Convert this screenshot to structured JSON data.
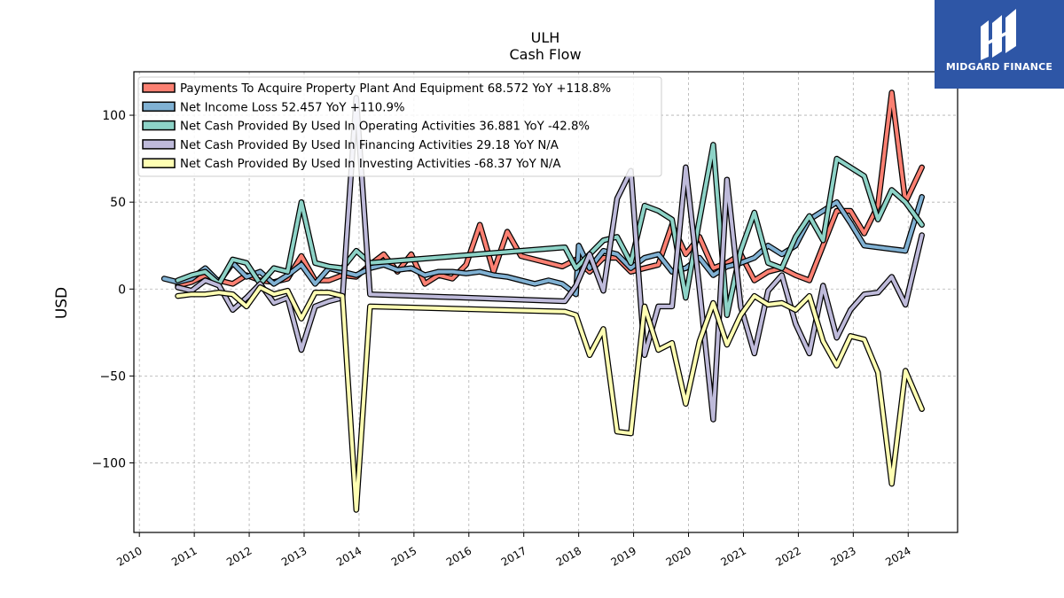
{
  "brand": {
    "name": "MIDGARD FINANCE",
    "bg_color": "#2e56a6"
  },
  "chart_data": {
    "type": "line",
    "title": "ULH",
    "subtitle": "Cash Flow",
    "ylabel": "USD",
    "xlabel": "",
    "xlim": [
      2009.9,
      2024.9
    ],
    "ylim": [
      -140,
      125
    ],
    "x_ticks": [
      "2010",
      "2011",
      "2012",
      "2013",
      "2014",
      "2015",
      "2016",
      "2017",
      "2018",
      "2019",
      "2020",
      "2021",
      "2022",
      "2023",
      "2024"
    ],
    "y_ticks": [
      {
        "value": 100,
        "label": "100"
      },
      {
        "value": 50,
        "label": "50"
      },
      {
        "value": 0,
        "label": "0"
      },
      {
        "value": -50,
        "label": "−50"
      },
      {
        "value": -100,
        "label": "−100"
      }
    ],
    "grid": true,
    "legend_position": "top-left",
    "series": [
      {
        "name": "Payments To Acquire Property Plant And Equipment  68.572 YoY +118.8%",
        "color": "#fb8072",
        "points": [
          [
            2010.7,
            2
          ],
          [
            2010.95,
            4
          ],
          [
            2011.2,
            8
          ],
          [
            2011.45,
            5
          ],
          [
            2011.7,
            3
          ],
          [
            2011.95,
            8
          ],
          [
            2012.2,
            5
          ],
          [
            2012.45,
            4
          ],
          [
            2012.7,
            6
          ],
          [
            2012.95,
            19
          ],
          [
            2013.2,
            5
          ],
          [
            2013.45,
            5
          ],
          [
            2013.7,
            8
          ],
          [
            2013.95,
            7
          ],
          [
            2014.2,
            14
          ],
          [
            2014.45,
            20
          ],
          [
            2014.7,
            10
          ],
          [
            2014.95,
            20
          ],
          [
            2015.2,
            3
          ],
          [
            2015.45,
            8
          ],
          [
            2015.7,
            6
          ],
          [
            2015.95,
            14
          ],
          [
            2016.2,
            37
          ],
          [
            2016.45,
            10
          ],
          [
            2016.7,
            33
          ],
          [
            2016.95,
            19
          ],
          [
            2017.2,
            17
          ],
          [
            2017.45,
            15
          ],
          [
            2017.7,
            13
          ],
          [
            2017.95,
            17
          ],
          [
            2018.2,
            10
          ],
          [
            2018.45,
            18
          ],
          [
            2018.7,
            18
          ],
          [
            2018.95,
            10
          ],
          [
            2019.2,
            12
          ],
          [
            2019.45,
            14
          ],
          [
            2019.7,
            37
          ],
          [
            2019.95,
            20
          ],
          [
            2020.2,
            30
          ],
          [
            2020.45,
            12
          ],
          [
            2020.7,
            15
          ],
          [
            2020.95,
            20
          ],
          [
            2021.2,
            5
          ],
          [
            2021.45,
            10
          ],
          [
            2021.7,
            12
          ],
          [
            2021.95,
            8
          ],
          [
            2022.2,
            5
          ],
          [
            2022.45,
            25
          ],
          [
            2022.7,
            45
          ],
          [
            2022.95,
            45
          ],
          [
            2023.2,
            32
          ],
          [
            2023.45,
            48
          ],
          [
            2023.7,
            113
          ],
          [
            2023.95,
            50
          ],
          [
            2024.25,
            70
          ]
        ]
      },
      {
        "name": "Net Income Loss  52.457 YoY +110.9%",
        "color": "#80b1d3",
        "points": [
          [
            2010.45,
            6
          ],
          [
            2010.7,
            4
          ],
          [
            2010.95,
            6
          ],
          [
            2011.2,
            12
          ],
          [
            2011.45,
            4
          ],
          [
            2011.7,
            15
          ],
          [
            2011.95,
            7
          ],
          [
            2012.2,
            10
          ],
          [
            2012.45,
            3
          ],
          [
            2012.7,
            8
          ],
          [
            2012.95,
            14
          ],
          [
            2013.2,
            3
          ],
          [
            2013.45,
            12
          ],
          [
            2013.7,
            10
          ],
          [
            2013.95,
            8
          ],
          [
            2014.2,
            12
          ],
          [
            2014.45,
            14
          ],
          [
            2014.7,
            11
          ],
          [
            2014.95,
            12
          ],
          [
            2015.2,
            8
          ],
          [
            2015.45,
            10
          ],
          [
            2015.7,
            10
          ],
          [
            2015.95,
            9
          ],
          [
            2016.2,
            10
          ],
          [
            2016.45,
            8
          ],
          [
            2016.7,
            7
          ],
          [
            2016.95,
            5
          ],
          [
            2017.2,
            3
          ],
          [
            2017.45,
            5
          ],
          [
            2017.7,
            3
          ],
          [
            2017.95,
            -3
          ],
          [
            2018.0,
            25
          ],
          [
            2018.2,
            12
          ],
          [
            2018.45,
            22
          ],
          [
            2018.7,
            20
          ],
          [
            2018.95,
            12
          ],
          [
            2019.2,
            18
          ],
          [
            2019.45,
            20
          ],
          [
            2019.7,
            10
          ],
          [
            2019.95,
            12
          ],
          [
            2020.2,
            18
          ],
          [
            2020.45,
            8
          ],
          [
            2020.7,
            13
          ],
          [
            2020.95,
            15
          ],
          [
            2021.2,
            18
          ],
          [
            2021.45,
            25
          ],
          [
            2021.7,
            20
          ],
          [
            2021.95,
            25
          ],
          [
            2022.2,
            40
          ],
          [
            2022.45,
            45
          ],
          [
            2022.7,
            50
          ],
          [
            2022.95,
            38
          ],
          [
            2023.2,
            25
          ],
          [
            2023.45,
            24
          ],
          [
            2023.7,
            23
          ],
          [
            2023.95,
            22
          ],
          [
            2024.25,
            53
          ]
        ]
      },
      {
        "name": "Net Cash Provided By Used In Operating Activities  36.881 YoY -42.8%",
        "color": "#8dd3c7",
        "points": [
          [
            2010.7,
            5
          ],
          [
            2010.95,
            8
          ],
          [
            2011.2,
            10
          ],
          [
            2011.45,
            3
          ],
          [
            2011.7,
            17
          ],
          [
            2011.95,
            15
          ],
          [
            2012.2,
            3
          ],
          [
            2012.45,
            12
          ],
          [
            2012.7,
            10
          ],
          [
            2012.95,
            50
          ],
          [
            2013.2,
            15
          ],
          [
            2013.45,
            13
          ],
          [
            2013.7,
            12
          ],
          [
            2013.95,
            22
          ],
          [
            2014.2,
            15
          ],
          [
            2017.75,
            24
          ],
          [
            2017.95,
            12
          ],
          [
            2018.2,
            20
          ],
          [
            2018.45,
            28
          ],
          [
            2018.7,
            30
          ],
          [
            2018.95,
            15
          ],
          [
            2019.2,
            48
          ],
          [
            2019.45,
            45
          ],
          [
            2019.7,
            40
          ],
          [
            2019.95,
            -5
          ],
          [
            2020.2,
            40
          ],
          [
            2020.45,
            83
          ],
          [
            2020.7,
            -15
          ],
          [
            2020.95,
            22
          ],
          [
            2021.2,
            44
          ],
          [
            2021.45,
            15
          ],
          [
            2021.7,
            12
          ],
          [
            2021.95,
            30
          ],
          [
            2022.2,
            42
          ],
          [
            2022.45,
            28
          ],
          [
            2022.7,
            75
          ],
          [
            2022.95,
            70
          ],
          [
            2023.2,
            65
          ],
          [
            2023.45,
            40
          ],
          [
            2023.7,
            57
          ],
          [
            2023.95,
            50
          ],
          [
            2024.25,
            37
          ]
        ]
      },
      {
        "name": "Net Cash Provided By Used In Financing Activities  29.18 YoY N/A",
        "color": "#bebada",
        "points": [
          [
            2010.7,
            1
          ],
          [
            2010.95,
            -1
          ],
          [
            2011.2,
            5
          ],
          [
            2011.45,
            2
          ],
          [
            2011.7,
            -12
          ],
          [
            2011.95,
            -5
          ],
          [
            2012.2,
            3
          ],
          [
            2012.45,
            -8
          ],
          [
            2012.7,
            -5
          ],
          [
            2012.95,
            -35
          ],
          [
            2013.2,
            -10
          ],
          [
            2013.45,
            -7
          ],
          [
            2013.7,
            -5
          ],
          [
            2013.95,
            110
          ],
          [
            2014.2,
            -3
          ],
          [
            2017.75,
            -7
          ],
          [
            2017.95,
            2
          ],
          [
            2018.2,
            20
          ],
          [
            2018.45,
            -1
          ],
          [
            2018.7,
            52
          ],
          [
            2018.95,
            68
          ],
          [
            2019.2,
            -38
          ],
          [
            2019.45,
            -10
          ],
          [
            2019.7,
            -10
          ],
          [
            2019.95,
            70
          ],
          [
            2020.2,
            0
          ],
          [
            2020.45,
            -75
          ],
          [
            2020.7,
            63
          ],
          [
            2020.95,
            -10
          ],
          [
            2021.2,
            -37
          ],
          [
            2021.45,
            -1
          ],
          [
            2021.7,
            8
          ],
          [
            2021.95,
            -20
          ],
          [
            2022.2,
            -37
          ],
          [
            2022.45,
            2
          ],
          [
            2022.7,
            -28
          ],
          [
            2022.95,
            -12
          ],
          [
            2023.2,
            -3
          ],
          [
            2023.45,
            -2
          ],
          [
            2023.7,
            7
          ],
          [
            2023.95,
            -9
          ],
          [
            2024.25,
            31
          ]
        ]
      },
      {
        "name": "Net Cash Provided By Used In Investing Activities  -68.37 YoY N/A",
        "color": "#ffffb3",
        "points": [
          [
            2010.7,
            -4
          ],
          [
            2010.95,
            -3
          ],
          [
            2011.2,
            -3
          ],
          [
            2011.45,
            -2
          ],
          [
            2011.7,
            -3
          ],
          [
            2011.95,
            -10
          ],
          [
            2012.2,
            1
          ],
          [
            2012.45,
            -3
          ],
          [
            2012.7,
            -1
          ],
          [
            2012.95,
            -17
          ],
          [
            2013.2,
            -2
          ],
          [
            2013.45,
            -2
          ],
          [
            2013.7,
            -4
          ],
          [
            2013.95,
            -127
          ],
          [
            2014.2,
            -10
          ],
          [
            2017.75,
            -13
          ],
          [
            2017.95,
            -15
          ],
          [
            2018.2,
            -38
          ],
          [
            2018.45,
            -23
          ],
          [
            2018.7,
            -82
          ],
          [
            2018.95,
            -83
          ],
          [
            2019.2,
            -10
          ],
          [
            2019.45,
            -35
          ],
          [
            2019.7,
            -31
          ],
          [
            2019.95,
            -66
          ],
          [
            2020.2,
            -30
          ],
          [
            2020.45,
            -8
          ],
          [
            2020.7,
            -32
          ],
          [
            2020.95,
            -15
          ],
          [
            2021.2,
            -4
          ],
          [
            2021.45,
            -9
          ],
          [
            2021.7,
            -8
          ],
          [
            2021.95,
            -12
          ],
          [
            2022.2,
            -4
          ],
          [
            2022.45,
            -30
          ],
          [
            2022.7,
            -44
          ],
          [
            2022.95,
            -27
          ],
          [
            2023.2,
            -29
          ],
          [
            2023.45,
            -48
          ],
          [
            2023.7,
            -112
          ],
          [
            2023.95,
            -47
          ],
          [
            2024.25,
            -69
          ]
        ]
      }
    ]
  }
}
